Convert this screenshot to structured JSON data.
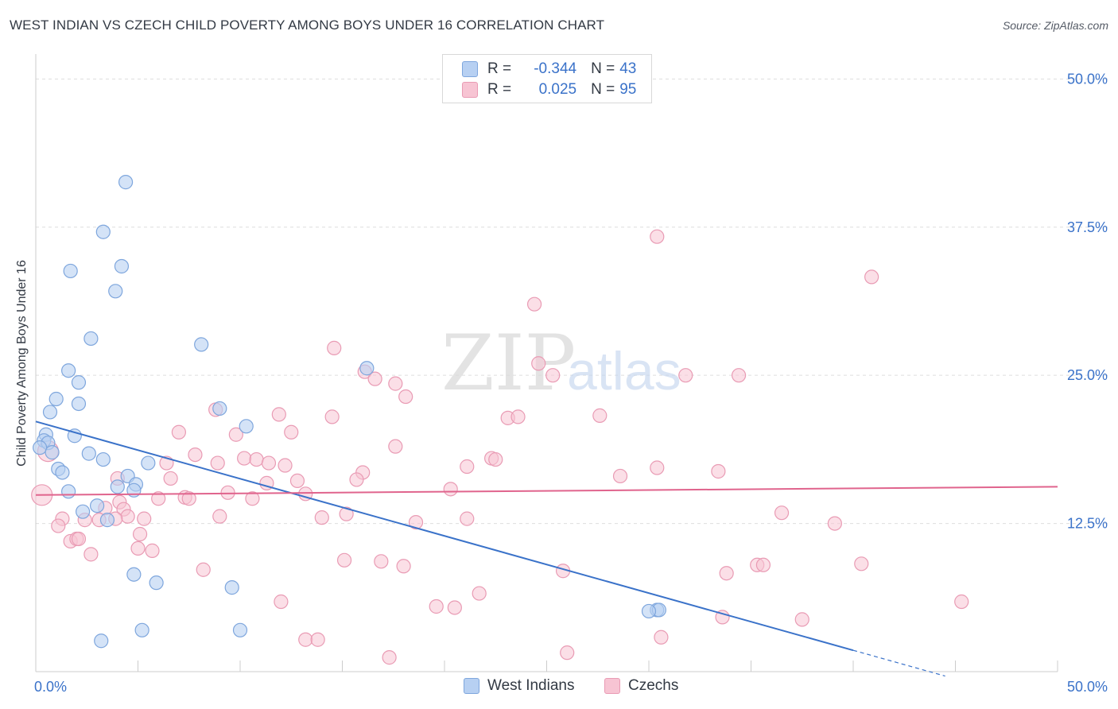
{
  "title": "WEST INDIAN VS CZECH CHILD POVERTY AMONG BOYS UNDER 16 CORRELATION CHART",
  "source": "Source: ZipAtlas.com",
  "watermark": {
    "zip": "ZIP",
    "atlas": "atlas"
  },
  "legend": {
    "rows": [
      {
        "r_label": "R =",
        "r_value": "-0.344",
        "n_label": "N =",
        "n_value": "43"
      },
      {
        "r_label": "R =",
        "r_value": "0.025",
        "n_label": "N =",
        "n_value": "95"
      }
    ]
  },
  "bottom_legend": {
    "west_indians": "West Indians",
    "czechs": "Czechs"
  },
  "colors": {
    "blue_fill": "#b7d0f2",
    "blue_stroke": "#7ea6dd",
    "blue_line": "#3a72c9",
    "pink_fill": "#f7c4d3",
    "pink_stroke": "#e99bb4",
    "pink_line": "#e0648d",
    "tick_text": "#3a72c9",
    "grid": "#dddddd"
  },
  "chart_data": {
    "type": "scatter",
    "title": "WEST INDIAN VS CZECH CHILD POVERTY AMONG BOYS UNDER 16 CORRELATION CHART",
    "xlabel": "",
    "ylabel": "Child Poverty Among Boys Under 16",
    "xlim": [
      0,
      50
    ],
    "ylim": [
      0,
      51.5
    ],
    "x_tick_labels": [
      {
        "value": 0,
        "label": "0.0%"
      },
      {
        "value": 50,
        "label": "50.0%"
      }
    ],
    "y_tick_labels": [
      {
        "value": 12.5,
        "label": "12.5%"
      },
      {
        "value": 25,
        "label": "25.0%"
      },
      {
        "value": 37.5,
        "label": "37.5%"
      },
      {
        "value": 50,
        "label": "50.0%"
      }
    ],
    "grid": true,
    "series": [
      {
        "name": "West Indians",
        "color": "#b7d0f2",
        "stats": {
          "R": -0.344,
          "N": 43
        },
        "trend": {
          "x0": 0,
          "y0": 21.1,
          "x1": 40,
          "y1": 1.8,
          "dashed_to_x": 44.5
        },
        "points": [
          [
            4.4,
            41.3
          ],
          [
            3.3,
            37.1
          ],
          [
            1.7,
            33.8
          ],
          [
            4.2,
            34.2
          ],
          [
            3.9,
            32.1
          ],
          [
            2.7,
            28.1
          ],
          [
            8.1,
            27.6
          ],
          [
            1.6,
            25.4
          ],
          [
            2.1,
            24.4
          ],
          [
            16.2,
            25.6
          ],
          [
            1.0,
            23.0
          ],
          [
            2.1,
            22.6
          ],
          [
            0.7,
            21.9
          ],
          [
            9.0,
            22.2
          ],
          [
            10.3,
            20.7
          ],
          [
            1.9,
            19.9
          ],
          [
            0.5,
            20.0
          ],
          [
            0.4,
            19.5
          ],
          [
            0.6,
            19.3
          ],
          [
            0.2,
            18.9
          ],
          [
            0.8,
            18.5
          ],
          [
            2.6,
            18.4
          ],
          [
            1.1,
            17.1
          ],
          [
            3.3,
            17.9
          ],
          [
            5.5,
            17.6
          ],
          [
            1.3,
            16.8
          ],
          [
            4.5,
            16.5
          ],
          [
            4.9,
            15.8
          ],
          [
            1.6,
            15.2
          ],
          [
            4.0,
            15.6
          ],
          [
            4.8,
            15.3
          ],
          [
            3.0,
            14.0
          ],
          [
            2.3,
            13.5
          ],
          [
            3.5,
            12.8
          ],
          [
            4.8,
            8.2
          ],
          [
            5.9,
            7.5
          ],
          [
            9.6,
            7.1
          ],
          [
            30.4,
            5.2
          ],
          [
            30.5,
            5.2
          ],
          [
            3.2,
            2.6
          ],
          [
            5.2,
            3.5
          ],
          [
            10.0,
            3.5
          ],
          [
            30.0,
            5.1
          ]
        ]
      },
      {
        "name": "Czechs",
        "color": "#f7c4d3",
        "stats": {
          "R": 0.025,
          "N": 95
        },
        "trend": {
          "x0": 0,
          "y0": 14.9,
          "x1": 50,
          "y1": 15.6
        },
        "points": [
          [
            30.4,
            36.7
          ],
          [
            40.9,
            33.3
          ],
          [
            24.4,
            31.0
          ],
          [
            14.6,
            27.3
          ],
          [
            24.6,
            26.0
          ],
          [
            16.1,
            25.3
          ],
          [
            25.3,
            25.0
          ],
          [
            31.8,
            25.0
          ],
          [
            34.4,
            25.0
          ],
          [
            16.6,
            24.7
          ],
          [
            17.6,
            24.3
          ],
          [
            18.1,
            23.2
          ],
          [
            8.8,
            22.1
          ],
          [
            14.5,
            21.5
          ],
          [
            11.9,
            21.7
          ],
          [
            23.1,
            21.4
          ],
          [
            23.6,
            21.5
          ],
          [
            27.6,
            21.6
          ],
          [
            12.5,
            20.2
          ],
          [
            7.0,
            20.2
          ],
          [
            9.8,
            20.0
          ],
          [
            17.6,
            19.0
          ],
          [
            7.8,
            18.3
          ],
          [
            10.2,
            18.0
          ],
          [
            10.8,
            17.9
          ],
          [
            6.4,
            17.6
          ],
          [
            8.9,
            17.6
          ],
          [
            11.4,
            17.6
          ],
          [
            12.2,
            17.4
          ],
          [
            21.1,
            17.3
          ],
          [
            22.3,
            18.0
          ],
          [
            22.5,
            17.9
          ],
          [
            30.4,
            17.2
          ],
          [
            33.4,
            16.9
          ],
          [
            16.0,
            16.8
          ],
          [
            15.7,
            16.2
          ],
          [
            4.0,
            16.3
          ],
          [
            6.6,
            16.3
          ],
          [
            12.8,
            16.1
          ],
          [
            28.6,
            16.5
          ],
          [
            11.3,
            15.9
          ],
          [
            20.3,
            15.4
          ],
          [
            9.4,
            15.1
          ],
          [
            13.2,
            15.0
          ],
          [
            0.3,
            14.9
          ],
          [
            6.0,
            14.6
          ],
          [
            7.3,
            14.7
          ],
          [
            7.5,
            14.6
          ],
          [
            10.6,
            14.6
          ],
          [
            4.1,
            14.3
          ],
          [
            3.4,
            13.8
          ],
          [
            4.3,
            13.7
          ],
          [
            4.5,
            13.1
          ],
          [
            3.9,
            12.9
          ],
          [
            1.3,
            12.9
          ],
          [
            2.4,
            12.8
          ],
          [
            3.1,
            12.8
          ],
          [
            5.3,
            12.9
          ],
          [
            9.0,
            13.1
          ],
          [
            14.0,
            13.0
          ],
          [
            15.2,
            13.3
          ],
          [
            18.6,
            12.6
          ],
          [
            21.1,
            12.9
          ],
          [
            36.5,
            13.4
          ],
          [
            39.1,
            12.5
          ],
          [
            1.1,
            12.3
          ],
          [
            5.1,
            11.6
          ],
          [
            1.7,
            11.0
          ],
          [
            2.0,
            11.2
          ],
          [
            2.1,
            11.2
          ],
          [
            5.0,
            10.4
          ],
          [
            5.7,
            10.2
          ],
          [
            2.7,
            9.9
          ],
          [
            15.1,
            9.4
          ],
          [
            16.9,
            9.3
          ],
          [
            18.0,
            8.9
          ],
          [
            8.2,
            8.6
          ],
          [
            25.8,
            8.5
          ],
          [
            33.8,
            8.3
          ],
          [
            35.3,
            9.0
          ],
          [
            35.6,
            9.0
          ],
          [
            40.4,
            9.1
          ],
          [
            12.0,
            5.9
          ],
          [
            19.6,
            5.5
          ],
          [
            20.5,
            5.4
          ],
          [
            21.7,
            6.6
          ],
          [
            33.6,
            4.6
          ],
          [
            37.5,
            4.4
          ],
          [
            45.3,
            5.9
          ],
          [
            13.2,
            2.7
          ],
          [
            13.8,
            2.7
          ],
          [
            26.0,
            1.6
          ],
          [
            17.3,
            1.2
          ],
          [
            30.6,
            2.9
          ],
          [
            0.6,
            18.6
          ]
        ]
      }
    ]
  }
}
